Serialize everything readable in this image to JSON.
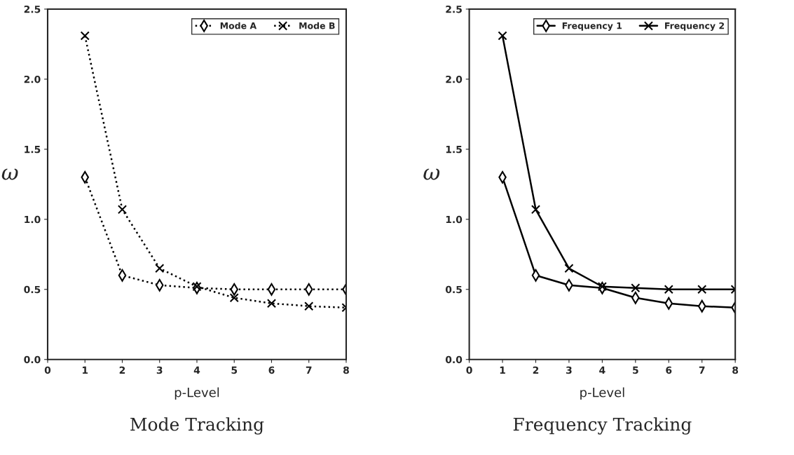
{
  "chart_data": [
    {
      "type": "line",
      "title": "Mode Tracking",
      "xlabel": "p-Level",
      "ylabel": "ω",
      "x": [
        1,
        2,
        3,
        4,
        5,
        6,
        7,
        8
      ],
      "series": [
        {
          "name": "Mode A",
          "color": "#000000",
          "marker": "diamond",
          "line_style": "dotted",
          "values": [
            1.3,
            0.6,
            0.53,
            0.51,
            0.5,
            0.5,
            0.5,
            0.5
          ]
        },
        {
          "name": "Mode B",
          "color": "#000000",
          "marker": "cross",
          "line_style": "dotted",
          "values": [
            2.31,
            1.07,
            0.65,
            0.52,
            0.44,
            0.4,
            0.38,
            0.37
          ]
        }
      ],
      "xlim": [
        0,
        8
      ],
      "xticks": [
        0,
        1,
        2,
        3,
        4,
        5,
        6,
        7,
        8
      ],
      "ylim": [
        0,
        2.5
      ],
      "yticks": [
        {
          "value": 0,
          "label": "0.0"
        },
        0.5,
        {
          "value": 1,
          "label": "1.0"
        },
        1.5,
        {
          "value": 2,
          "label": "2.0"
        },
        2.5
      ],
      "grid": false,
      "legend": "top right"
    },
    {
      "type": "line",
      "title": "Frequency Tracking",
      "xlabel": "p-Level",
      "ylabel": "ω",
      "x": [
        1,
        2,
        3,
        4,
        5,
        6,
        7,
        8
      ],
      "series": [
        {
          "name": "Frequency 1",
          "color": "#000000",
          "marker": "diamond",
          "line_style": "solid",
          "values": [
            1.3,
            0.6,
            0.53,
            0.51,
            0.44,
            0.4,
            0.38,
            0.37
          ]
        },
        {
          "name": "Frequency 2",
          "color": "#000000",
          "marker": "cross",
          "line_style": "solid",
          "values": [
            2.31,
            1.07,
            0.65,
            0.52,
            0.51,
            0.5,
            0.5,
            0.5
          ]
        }
      ],
      "xlim": [
        0,
        8
      ],
      "xticks": [
        0,
        1,
        2,
        3,
        4,
        5,
        6,
        7,
        8
      ],
      "ylim": [
        0,
        2.5
      ],
      "yticks": [
        {
          "value": 0,
          "label": "0.0"
        },
        0.5,
        {
          "value": 1,
          "label": "1.0"
        },
        1.5,
        {
          "value": 2,
          "label": "2.0"
        },
        2.5
      ],
      "grid": false,
      "legend": "top right"
    }
  ]
}
